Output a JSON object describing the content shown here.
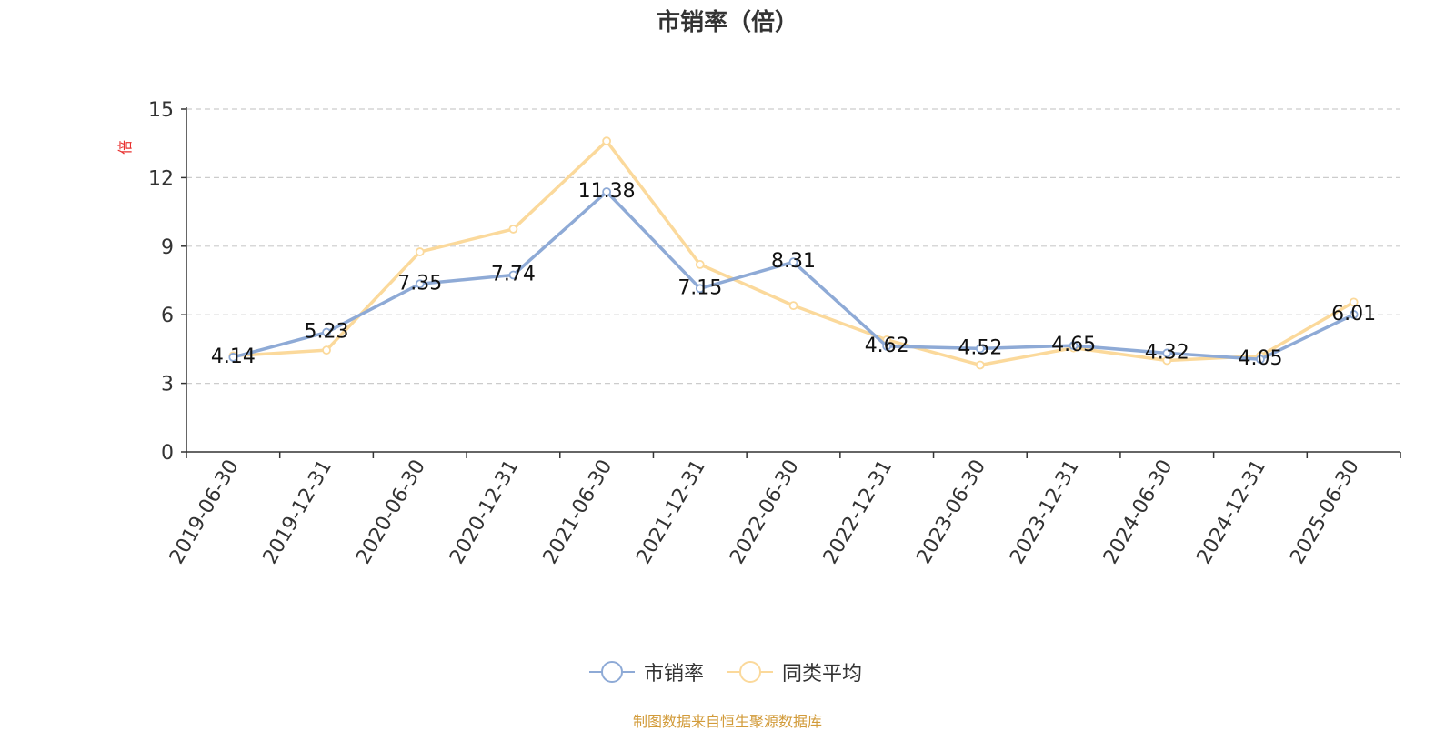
{
  "title": "市销率（倍）",
  "source": "制图数据来自恒生聚源数据库",
  "chart_data": {
    "type": "line",
    "title": "市销率（倍）",
    "ylabel": "倍",
    "ylim": [
      0,
      15
    ],
    "yticks": [
      0,
      3,
      6,
      9,
      12,
      15
    ],
    "grid": true,
    "legend_position": "bottom",
    "categories": [
      "2019-06-30",
      "2019-12-31",
      "2020-06-30",
      "2020-12-31",
      "2021-06-30",
      "2021-12-31",
      "2022-06-30",
      "2022-12-31",
      "2023-06-30",
      "2023-12-31",
      "2024-06-30",
      "2024-12-31",
      "2025-06-30"
    ],
    "series": [
      {
        "name": "市销率",
        "color": "#8eaad6",
        "show_labels": true,
        "values": [
          4.14,
          5.23,
          7.35,
          7.74,
          11.38,
          7.15,
          8.31,
          4.62,
          4.52,
          4.65,
          4.32,
          4.05,
          6.01
        ]
      },
      {
        "name": "同类平均",
        "color": "#fbd99b",
        "show_labels": false,
        "values": [
          4.2,
          4.45,
          8.75,
          9.75,
          13.6,
          8.2,
          6.4,
          4.9,
          3.8,
          4.55,
          4.0,
          4.2,
          6.55
        ]
      }
    ]
  }
}
